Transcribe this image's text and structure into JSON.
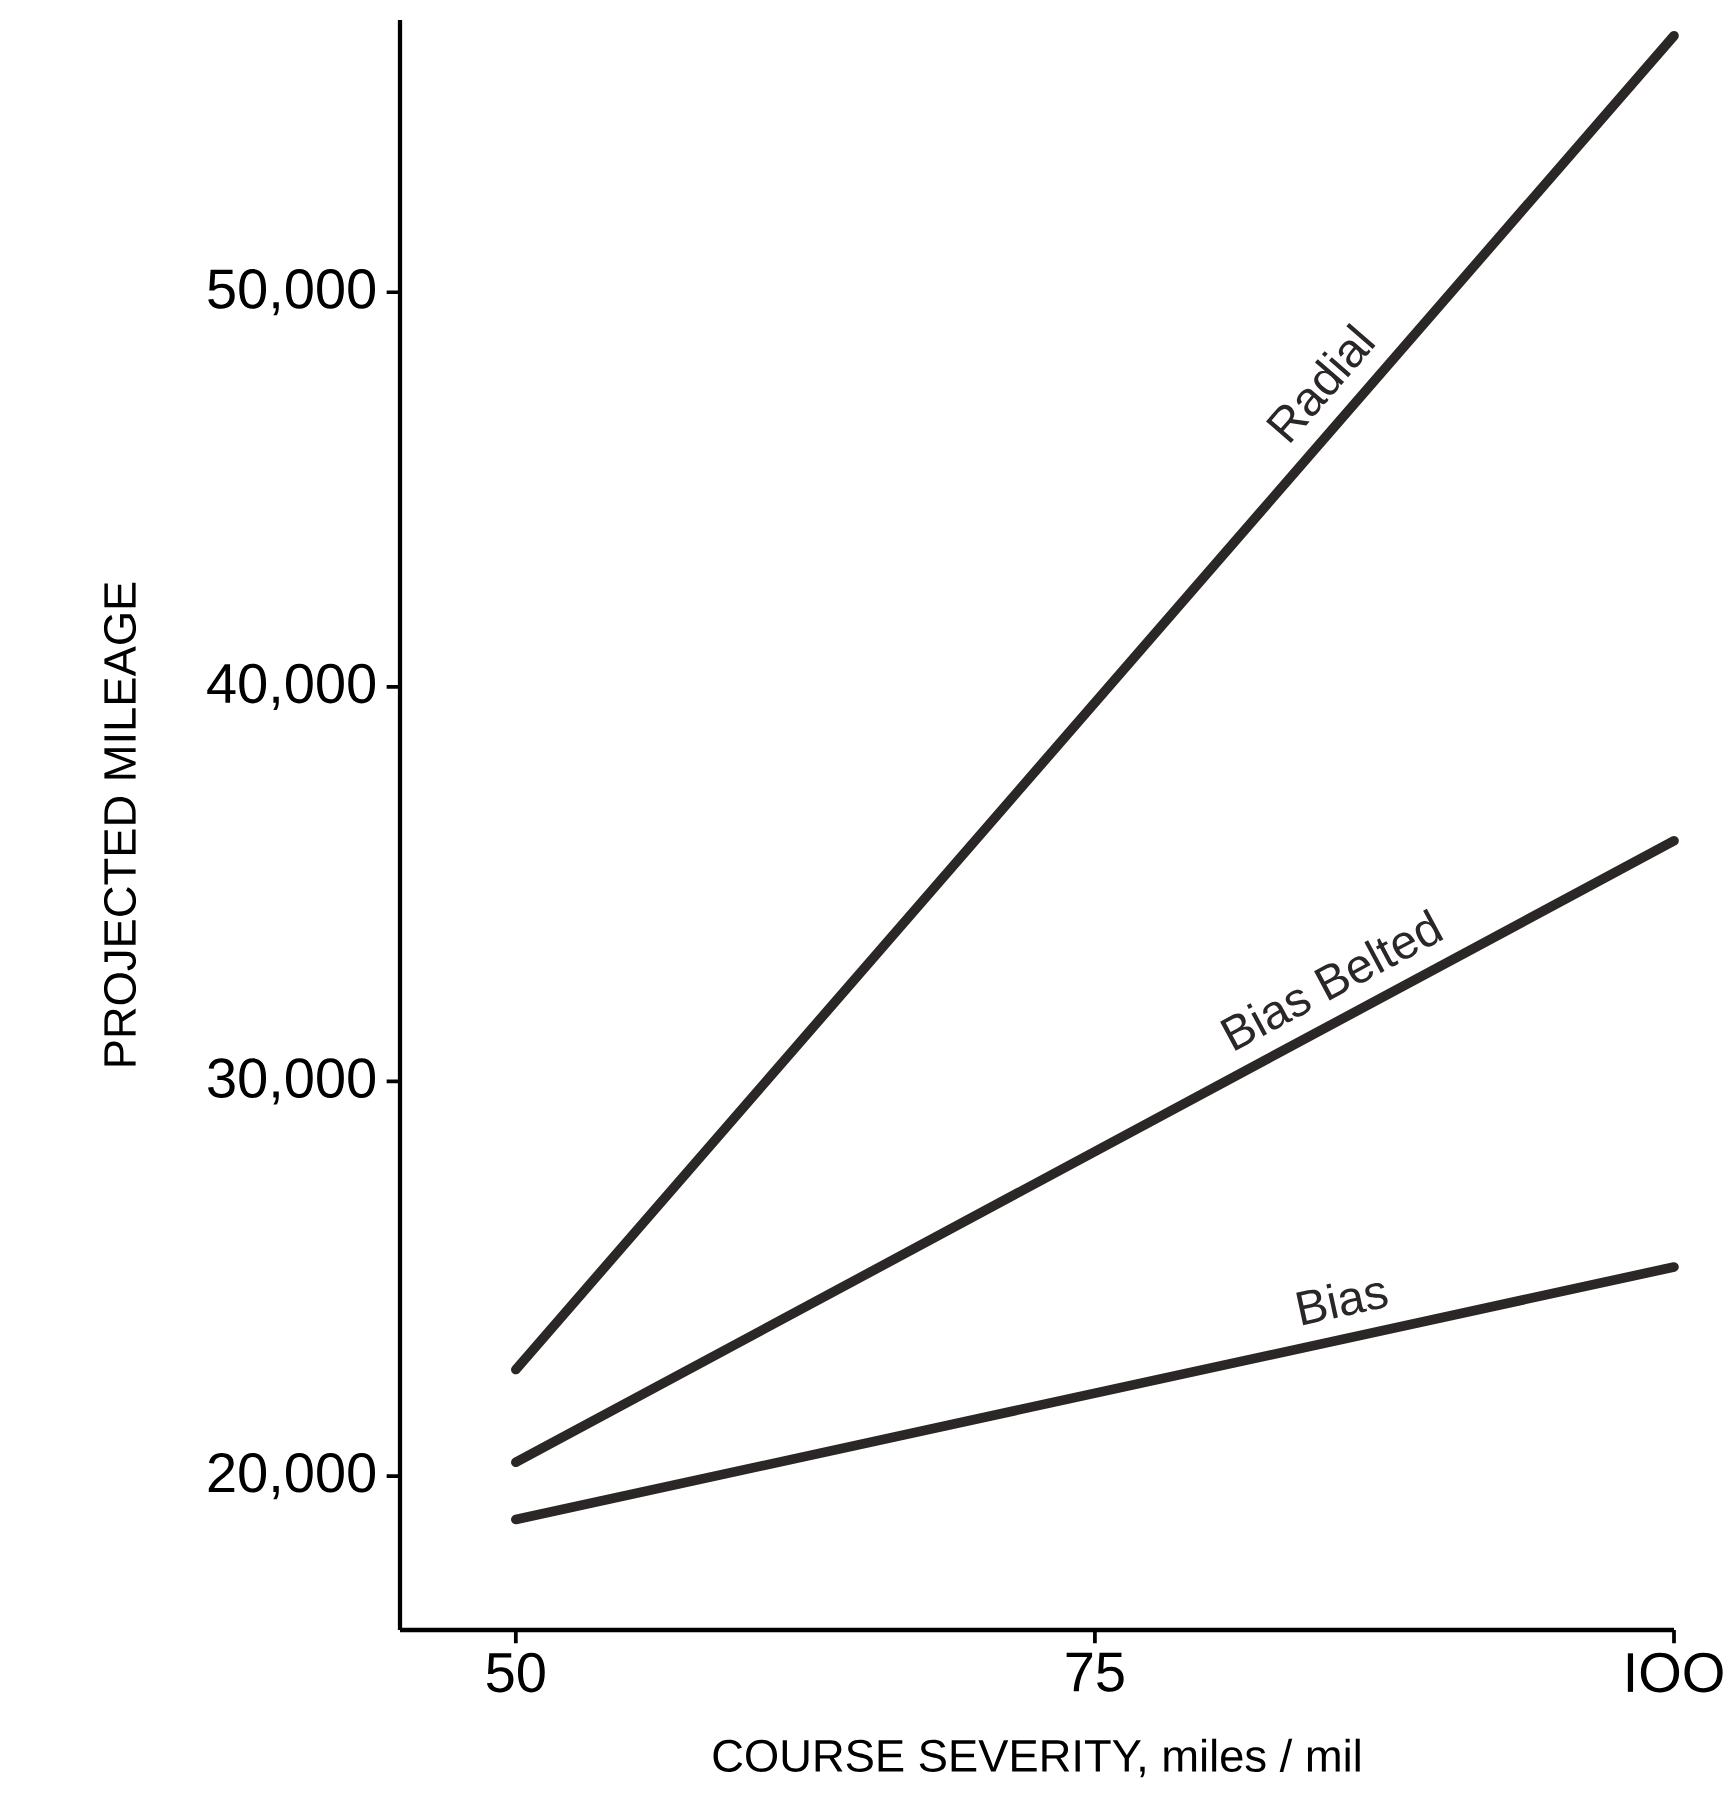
{
  "chart_data": {
    "type": "line",
    "xlabel": "COURSE SEVERITY, miles / mil",
    "ylabel": "PROJECTED MILEAGE",
    "x": [
      50,
      100
    ],
    "series": [
      {
        "name": "Radial",
        "color": "#2b2727",
        "values": [
          22700,
          56500
        ]
      },
      {
        "name": "Bias Belted",
        "color": "#2b2727",
        "values": [
          20350,
          36100
        ]
      },
      {
        "name": "Bias",
        "color": "#2b2727",
        "values": [
          18900,
          25300
        ]
      }
    ],
    "xlim": [
      45,
      100
    ],
    "ylim": [
      16100,
      56900
    ],
    "xticks": [
      50,
      75,
      {
        "value": 100,
        "label": "IOO"
      }
    ],
    "yticks": [
      {
        "value": 20000,
        "label": "20,000"
      },
      {
        "value": 30000,
        "label": "30,000"
      },
      {
        "value": 40000,
        "label": "40,000"
      },
      {
        "value": 50000,
        "label": "50,000"
      }
    ],
    "grid": false,
    "legend": false,
    "marker": "none",
    "line_style": "solid"
  }
}
